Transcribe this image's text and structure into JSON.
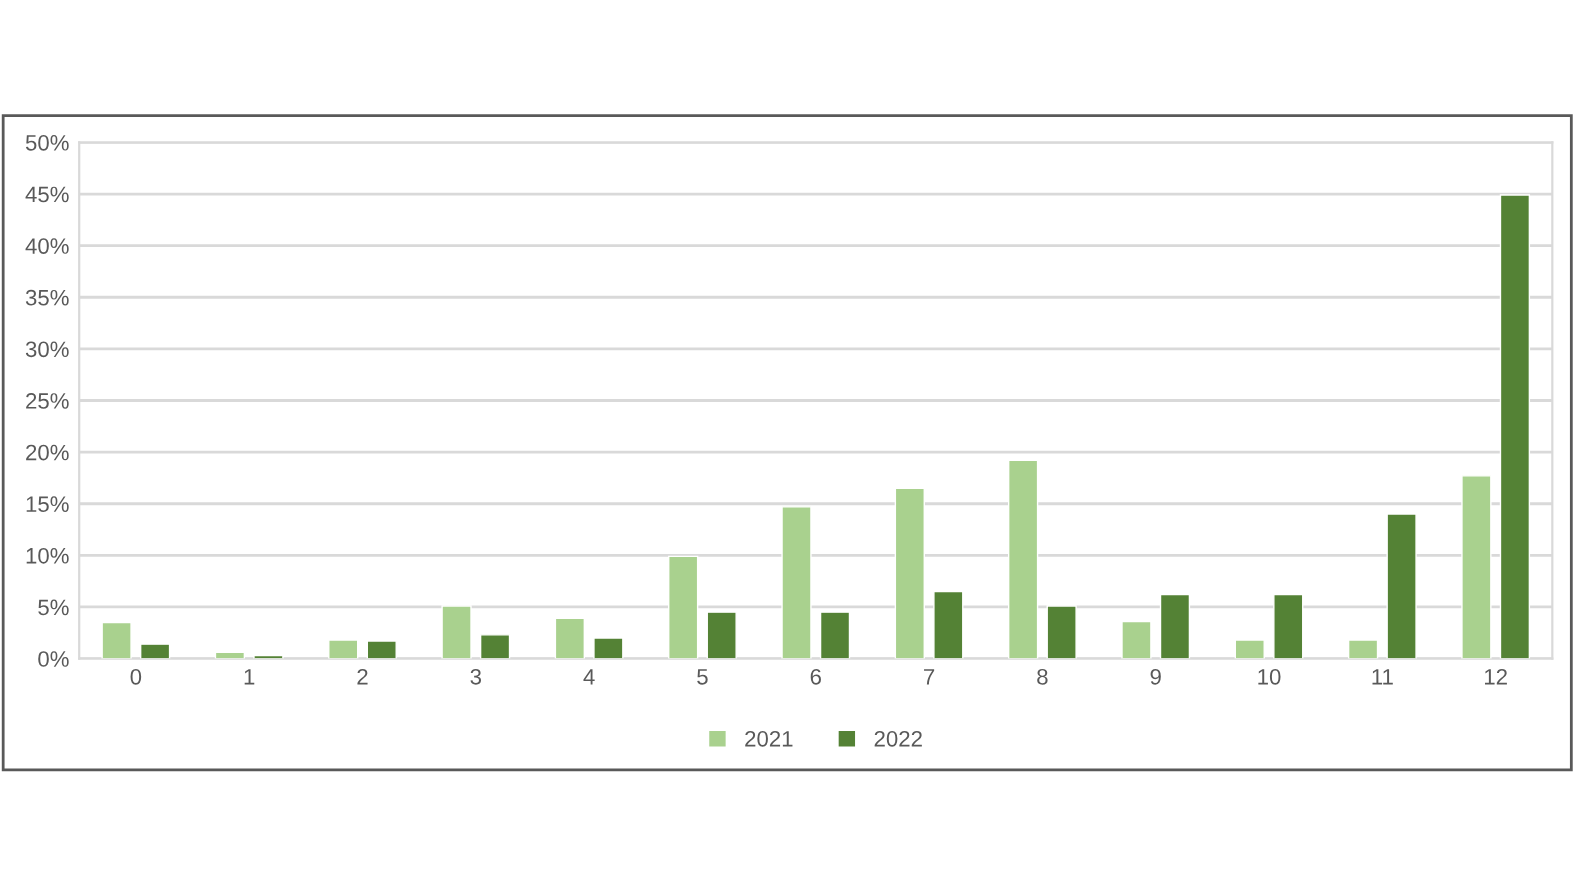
{
  "chart_data": {
    "type": "bar",
    "categories": [
      "0",
      "1",
      "2",
      "3",
      "4",
      "5",
      "6",
      "7",
      "8",
      "9",
      "10",
      "11",
      "12"
    ],
    "series": [
      {
        "name": "2021",
        "color": "#a9d18e",
        "values": [
          3.5,
          0.6,
          1.8,
          5.1,
          3.9,
          9.9,
          14.7,
          16.5,
          19.2,
          3.6,
          1.8,
          1.8,
          17.7
        ]
      },
      {
        "name": "2022",
        "color": "#548235",
        "values": [
          1.4,
          0.3,
          1.7,
          2.3,
          2.0,
          4.5,
          4.5,
          6.5,
          5.1,
          6.2,
          6.2,
          14.0,
          44.9
        ]
      }
    ],
    "ylim": [
      0,
      50
    ],
    "yticks": [
      {
        "value": 0,
        "label": "0%"
      },
      {
        "value": 5,
        "label": "5%"
      },
      {
        "value": 10,
        "label": "10%"
      },
      {
        "value": 15,
        "label": "15%"
      },
      {
        "value": 20,
        "label": "20%"
      },
      {
        "value": 25,
        "label": "25%"
      },
      {
        "value": 30,
        "label": "30%"
      },
      {
        "value": 35,
        "label": "35%"
      },
      {
        "value": 40,
        "label": "40%"
      },
      {
        "value": 45,
        "label": "45%"
      },
      {
        "value": 50,
        "label": "50%"
      }
    ],
    "grid": "y",
    "legend": "bottom"
  }
}
